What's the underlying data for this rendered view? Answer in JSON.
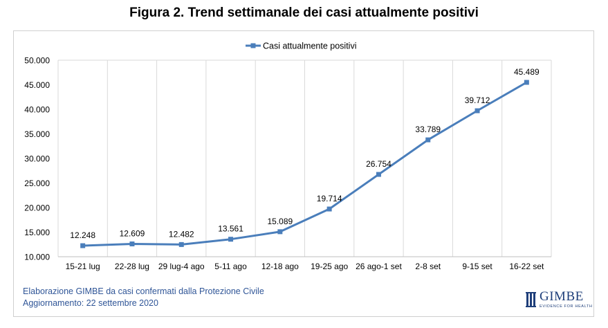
{
  "title": "Figura 2. Trend settimanale dei casi attualmente positivi",
  "source_line1": "Elaborazione GIMBE da casi confermati dalla Protezione Civile",
  "source_line2": "Aggiornamento: 22 settembre 2020",
  "logo": {
    "name": "GIMBE",
    "tagline": "EVIDENCE FOR HEALTH"
  },
  "colors": {
    "line": "#4a7ebb",
    "grid": "#d9d9d9",
    "source_text": "#2f5597"
  },
  "chart_data": {
    "type": "line",
    "title": "Figura 2. Trend settimanale dei casi attualmente positivi",
    "categories": [
      "15-21 lug",
      "22-28 lug",
      "29 lug-4 ago",
      "5-11 ago",
      "12-18 ago",
      "19-25 ago",
      "26 ago-1 set",
      "2-8 set",
      "9-15 set",
      "16-22 set"
    ],
    "series": [
      {
        "name": "Casi attualmente positivi",
        "values": [
          12248,
          12609,
          12482,
          13561,
          15089,
          19714,
          26754,
          33789,
          39712,
          45489
        ]
      }
    ],
    "data_labels": [
      "12.248",
      "12.609",
      "12.482",
      "13.561",
      "15.089",
      "19.714",
      "26.754",
      "33.789",
      "39.712",
      "45.489"
    ],
    "y_ticks": [
      10000,
      15000,
      20000,
      25000,
      30000,
      35000,
      40000,
      45000,
      50000
    ],
    "y_tick_labels": [
      "10.000",
      "15.000",
      "20.000",
      "25.000",
      "30.000",
      "35.000",
      "40.000",
      "45.000",
      "50.000"
    ],
    "ylim": [
      10000,
      50000
    ],
    "xlabel": "",
    "ylabel": "",
    "grid": "vertical",
    "legend_position": "top"
  }
}
